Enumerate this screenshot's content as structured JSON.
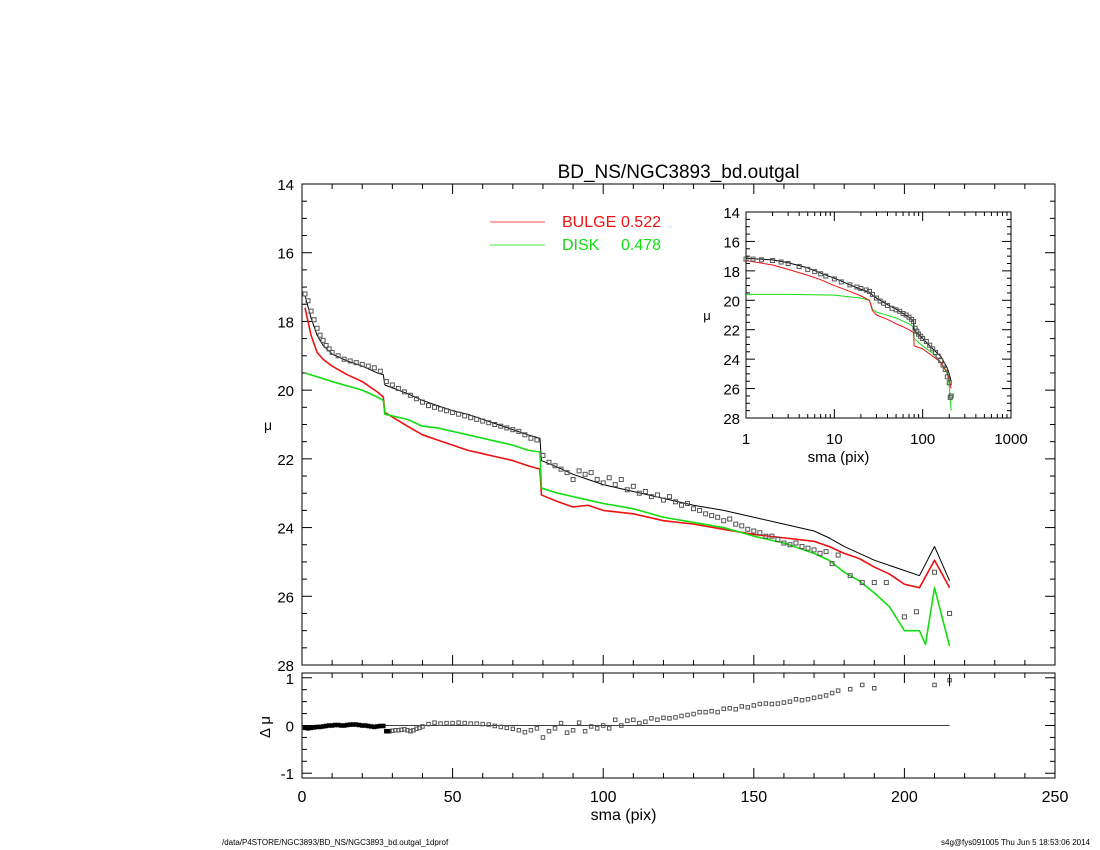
{
  "footer": {
    "path": "/data/P4STORE/NGC3893/BD_NS/NGC3893_bd.outgal_1dprof",
    "stamp": "s4g@fys091005  Thu Jun  5 18:53:06 2014"
  },
  "colors": {
    "bulge": "#ee1111",
    "disk": "#11dd11",
    "total": "#000000",
    "data": "#555555"
  },
  "chart_data": [
    {
      "id": "main",
      "type": "line",
      "title": "BD_NS/NGC3893_bd.outgal",
      "xlabel": "",
      "ylabel": "μ",
      "xlim": [
        0,
        250
      ],
      "ylim": [
        28,
        14
      ],
      "yticks": [
        14,
        16,
        18,
        20,
        22,
        24,
        26,
        28
      ],
      "legend": [
        {
          "label": "BULGE",
          "value": "0.522",
          "color": "#ee1111"
        },
        {
          "label": "DISK",
          "value": "0.478",
          "color": "#11dd11"
        }
      ],
      "legend_position": "top-center",
      "series": [
        {
          "name": "BULGE",
          "x": [
            1,
            3,
            5,
            7,
            10,
            15,
            20,
            25,
            27,
            27.5,
            35,
            40,
            45,
            50,
            55,
            60,
            65,
            70,
            75,
            79,
            79.5,
            85,
            90,
            95,
            100,
            110,
            120,
            130,
            140,
            150,
            160,
            170,
            175,
            180,
            185,
            190,
            195,
            200,
            205,
            210,
            215
          ],
          "y": [
            17.6,
            18.4,
            18.9,
            19.1,
            19.3,
            19.55,
            19.75,
            20.05,
            20.2,
            20.65,
            21.05,
            21.3,
            21.45,
            21.6,
            21.75,
            21.85,
            21.95,
            22.05,
            22.2,
            22.3,
            23.05,
            23.25,
            23.4,
            23.35,
            23.5,
            23.6,
            23.8,
            23.9,
            24.05,
            24.2,
            24.3,
            24.4,
            24.55,
            24.75,
            24.9,
            25.15,
            25.35,
            25.65,
            25.75,
            24.95,
            25.75
          ]
        },
        {
          "name": "DISK",
          "x": [
            1,
            10,
            20,
            25,
            27,
            27.5,
            35,
            40,
            45,
            50,
            55,
            60,
            65,
            70,
            75,
            79,
            79.5,
            85,
            90,
            95,
            100,
            110,
            120,
            130,
            140,
            150,
            160,
            170,
            175,
            180,
            185,
            190,
            195,
            200,
            205,
            207,
            210,
            215
          ],
          "y": [
            19.5,
            19.75,
            20.0,
            20.2,
            20.3,
            20.7,
            20.85,
            21.05,
            21.1,
            21.2,
            21.3,
            21.4,
            21.5,
            21.6,
            21.75,
            21.8,
            22.85,
            23.0,
            23.1,
            23.2,
            23.3,
            23.45,
            23.7,
            23.85,
            24.0,
            24.25,
            24.45,
            24.75,
            24.95,
            25.3,
            25.55,
            25.9,
            26.3,
            27.0,
            27.0,
            27.4,
            25.75,
            27.45
          ]
        },
        {
          "name": "TOTAL",
          "x": [
            1,
            3,
            5,
            7,
            10,
            15,
            20,
            25,
            27,
            27.5,
            35,
            40,
            45,
            50,
            55,
            60,
            65,
            70,
            75,
            79,
            79.5,
            85,
            90,
            95,
            100,
            110,
            120,
            130,
            140,
            150,
            160,
            170,
            175,
            180,
            185,
            190,
            195,
            200,
            205,
            210,
            215
          ],
          "y": [
            17.25,
            17.9,
            18.4,
            18.7,
            18.95,
            19.15,
            19.3,
            19.5,
            19.55,
            19.85,
            20.1,
            20.3,
            20.45,
            20.6,
            20.7,
            20.85,
            21.0,
            21.15,
            21.3,
            21.4,
            22.05,
            22.25,
            22.45,
            22.6,
            22.75,
            22.95,
            23.15,
            23.35,
            23.5,
            23.7,
            23.9,
            24.1,
            24.3,
            24.55,
            24.75,
            24.95,
            25.1,
            25.25,
            25.4,
            24.55,
            25.55
          ]
        },
        {
          "name": "DATA",
          "x": [
            1,
            2,
            3,
            4,
            5,
            6,
            7,
            8,
            9,
            10,
            12,
            14,
            16,
            18,
            20,
            22,
            24,
            26,
            28,
            30,
            32,
            34,
            36,
            38,
            40,
            42,
            44,
            46,
            48,
            50,
            52,
            54,
            56,
            58,
            60,
            62,
            64,
            66,
            68,
            70,
            72,
            74,
            76,
            78,
            80,
            82,
            84,
            86,
            88,
            90,
            92,
            94,
            96,
            98,
            100,
            102,
            104,
            106,
            108,
            110,
            112,
            114,
            116,
            118,
            120,
            122,
            124,
            126,
            128,
            130,
            132,
            134,
            136,
            138,
            140,
            142,
            144,
            146,
            148,
            150,
            152,
            154,
            156,
            158,
            160,
            162,
            164,
            166,
            168,
            170,
            172,
            174,
            176,
            178,
            182,
            186,
            190,
            194,
            200,
            204,
            210,
            215
          ],
          "y": [
            17.2,
            17.4,
            17.7,
            17.95,
            18.2,
            18.4,
            18.55,
            18.7,
            18.8,
            18.9,
            19.0,
            19.1,
            19.15,
            19.2,
            19.25,
            19.3,
            19.35,
            19.45,
            19.75,
            19.85,
            19.95,
            20.05,
            20.15,
            20.25,
            20.35,
            20.45,
            20.5,
            20.55,
            20.6,
            20.65,
            20.7,
            20.75,
            20.8,
            20.85,
            20.9,
            20.95,
            21.0,
            21.05,
            21.1,
            21.15,
            21.2,
            21.3,
            21.4,
            21.45,
            21.9,
            22.1,
            22.2,
            22.3,
            22.4,
            22.6,
            22.35,
            22.45,
            22.4,
            22.6,
            22.7,
            22.55,
            22.75,
            22.6,
            22.9,
            22.8,
            23.0,
            22.95,
            23.1,
            23.05,
            23.2,
            23.1,
            23.25,
            23.35,
            23.3,
            23.45,
            23.5,
            23.6,
            23.65,
            23.7,
            23.8,
            23.75,
            23.9,
            23.95,
            24.05,
            24.1,
            24.15,
            24.25,
            24.25,
            24.35,
            24.45,
            24.5,
            24.45,
            24.55,
            24.6,
            24.65,
            24.75,
            24.7,
            25.05,
            24.8,
            25.4,
            25.6,
            25.6,
            25.6,
            26.6,
            26.45,
            25.3,
            26.5
          ]
        }
      ]
    },
    {
      "id": "inset",
      "type": "line",
      "xlabel": "sma (pix)",
      "ylabel": "μ",
      "xscale": "log",
      "xlim": [
        1,
        1000
      ],
      "xtick_labels": [
        "1",
        "10",
        "100",
        "1000"
      ],
      "ylim": [
        28,
        14
      ],
      "yticks": [
        14,
        16,
        18,
        20,
        22,
        24,
        26,
        28
      ],
      "series": [
        {
          "name": "BULGE",
          "x": [
            1,
            2,
            3,
            5,
            7,
            10,
            15,
            20,
            25,
            27,
            30,
            40,
            50,
            60,
            70,
            79,
            80,
            100,
            130,
            160,
            190,
            200,
            210
          ],
          "y": [
            17.3,
            17.6,
            17.9,
            18.3,
            18.6,
            19.0,
            19.4,
            19.7,
            20.0,
            20.7,
            21.0,
            21.3,
            21.6,
            21.8,
            22.0,
            22.2,
            23.1,
            23.3,
            23.8,
            24.2,
            24.9,
            25.4,
            26.0
          ]
        },
        {
          "name": "DISK",
          "x": [
            1,
            3,
            10,
            20,
            25,
            27,
            30,
            50,
            70,
            79,
            80,
            100,
            130,
            160,
            190,
            200,
            210
          ],
          "y": [
            19.6,
            19.6,
            19.65,
            19.85,
            20.0,
            20.6,
            20.8,
            21.2,
            21.6,
            21.8,
            22.6,
            23.1,
            23.6,
            24.2,
            25.0,
            25.8,
            27.5
          ]
        },
        {
          "name": "TOTAL",
          "x": [
            1,
            2,
            3,
            5,
            7,
            10,
            15,
            20,
            25,
            27,
            30,
            40,
            50,
            60,
            70,
            79,
            80,
            100,
            130,
            160,
            190,
            200,
            210
          ],
          "y": [
            17.15,
            17.25,
            17.45,
            17.8,
            18.15,
            18.5,
            18.95,
            19.25,
            19.45,
            19.65,
            19.85,
            20.3,
            20.6,
            20.9,
            21.15,
            21.4,
            22.05,
            22.6,
            23.3,
            23.8,
            24.6,
            25.0,
            25.5
          ]
        },
        {
          "name": "DATA",
          "x": [
            1,
            1.2,
            1.5,
            2,
            2.5,
            3,
            4,
            5,
            6,
            7,
            8,
            10,
            12,
            15,
            18,
            20,
            23,
            25,
            27,
            30,
            33,
            36,
            40,
            45,
            50,
            55,
            60,
            65,
            70,
            75,
            79,
            82,
            86,
            90,
            95,
            100,
            110,
            120,
            130,
            140,
            150,
            160,
            170,
            180,
            190,
            200,
            205,
            210
          ],
          "y": [
            17.2,
            17.2,
            17.25,
            17.3,
            17.4,
            17.5,
            17.7,
            17.9,
            18.05,
            18.2,
            18.35,
            18.55,
            18.75,
            18.95,
            19.1,
            19.2,
            19.3,
            19.4,
            19.6,
            19.85,
            20.05,
            20.2,
            20.35,
            20.55,
            20.65,
            20.75,
            20.9,
            21.0,
            21.15,
            21.3,
            21.45,
            21.9,
            22.1,
            22.3,
            22.45,
            22.6,
            22.8,
            23.05,
            23.3,
            23.55,
            23.8,
            24.1,
            24.4,
            24.7,
            25.2,
            25.6,
            26.6,
            26.5
          ]
        }
      ]
    },
    {
      "id": "residual",
      "type": "scatter",
      "xlabel": "sma (pix)",
      "ylabel": "Δ μ",
      "xlim": [
        0,
        250
      ],
      "xticks": [
        0,
        50,
        100,
        150,
        200,
        250
      ],
      "ylim": [
        -1.1,
        1.1
      ],
      "yticks": [
        -1,
        0,
        1
      ],
      "zero_line_xmax": 215,
      "series": [
        {
          "name": "RESID",
          "x": [
            1,
            2,
            3,
            4,
            5,
            6,
            7,
            8,
            9,
            10,
            11,
            12,
            13,
            14,
            15,
            16,
            17,
            18,
            19,
            20,
            21,
            22,
            23,
            24,
            25,
            26,
            27,
            28,
            29,
            30,
            31,
            32,
            33,
            34,
            35,
            36,
            37,
            38,
            39,
            40,
            42,
            44,
            46,
            48,
            50,
            52,
            54,
            56,
            58,
            60,
            62,
            64,
            66,
            68,
            70,
            72,
            74,
            76,
            78,
            80,
            82,
            84,
            86,
            88,
            90,
            92,
            94,
            96,
            98,
            100,
            102,
            104,
            106,
            108,
            110,
            112,
            114,
            116,
            118,
            120,
            122,
            124,
            126,
            128,
            130,
            132,
            134,
            136,
            138,
            140,
            142,
            144,
            146,
            148,
            150,
            152,
            154,
            156,
            158,
            160,
            162,
            164,
            166,
            168,
            170,
            172,
            174,
            176,
            178,
            182,
            186,
            190,
            210,
            215
          ],
          "y": [
            -0.05,
            -0.06,
            -0.05,
            -0.04,
            -0.03,
            -0.03,
            -0.02,
            -0.01,
            0.0,
            0.0,
            0.01,
            0.01,
            0.0,
            0.0,
            0.01,
            0.02,
            0.02,
            0.02,
            0.01,
            0.0,
            0.0,
            -0.01,
            -0.02,
            -0.03,
            -0.02,
            -0.01,
            -0.01,
            -0.12,
            -0.12,
            -0.11,
            -0.1,
            -0.1,
            -0.09,
            -0.08,
            -0.1,
            -0.12,
            -0.1,
            -0.07,
            -0.05,
            -0.02,
            0.03,
            0.06,
            0.04,
            0.05,
            0.05,
            0.06,
            0.05,
            0.04,
            0.04,
            0.03,
            0.02,
            -0.01,
            -0.03,
            -0.05,
            -0.07,
            -0.1,
            -0.14,
            -0.1,
            -0.06,
            -0.25,
            -0.12,
            -0.06,
            0.05,
            -0.15,
            -0.1,
            0.06,
            -0.12,
            -0.02,
            -0.06,
            0.0,
            -0.06,
            0.12,
            0.0,
            0.1,
            0.12,
            0.05,
            0.08,
            0.15,
            0.12,
            0.16,
            0.15,
            0.17,
            0.2,
            0.22,
            0.24,
            0.28,
            0.28,
            0.3,
            0.28,
            0.35,
            0.36,
            0.34,
            0.4,
            0.38,
            0.42,
            0.45,
            0.46,
            0.45,
            0.46,
            0.48,
            0.5,
            0.55,
            0.53,
            0.55,
            0.58,
            0.6,
            0.63,
            0.68,
            0.73,
            0.76,
            0.85,
            0.78,
            0.85,
            0.95
          ]
        }
      ]
    }
  ]
}
